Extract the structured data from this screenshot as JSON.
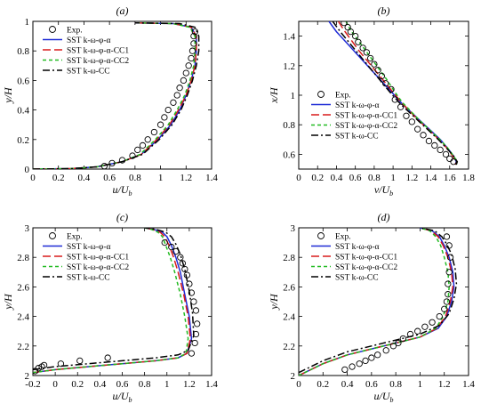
{
  "legend": [
    {
      "key": "exp",
      "label": "Exp.",
      "style": "circle",
      "color": "#000000"
    },
    {
      "key": "a",
      "label": "SST k-ω-φ-α",
      "style": "solid",
      "color": "#1f2bd6"
    },
    {
      "key": "cc1",
      "label": "SST k-ω-φ-α-CC1",
      "style": "dashed",
      "color": "#d81b1b"
    },
    {
      "key": "cc2",
      "label": "SST k-ω-φ-α-CC2",
      "style": "dotted",
      "color": "#22bb22"
    },
    {
      "key": "cc",
      "label": "SST k-ω-CC",
      "style": "dashdot",
      "color": "#000000"
    }
  ],
  "chart_data": [
    {
      "type": "line",
      "panel": "(a)",
      "xlabel": "u/U_b",
      "ylabel": "y/H",
      "xlim": [
        0,
        1.4
      ],
      "ylim": [
        0,
        1
      ],
      "xticks": [
        0,
        0.2,
        0.4,
        0.6,
        0.8,
        1,
        1.2,
        1.4
      ],
      "yticks": [
        0,
        0.2,
        0.4,
        0.6,
        0.8,
        1
      ],
      "xtick_labels": [
        "0",
        "0.2",
        "0.4",
        "0.6",
        "0.8",
        "1",
        "1.2",
        "1.4"
      ],
      "ytick_labels": [
        "0",
        "0.2",
        "0.4",
        "0.6",
        "0.8",
        "1"
      ],
      "series": {
        "exp": {
          "x": [
            0.56,
            0.62,
            0.7,
            0.78,
            0.82,
            0.86,
            0.9,
            0.95,
            1.0,
            1.03,
            1.06,
            1.1,
            1.13,
            1.15,
            1.18,
            1.2,
            1.22,
            1.24,
            1.25,
            1.26,
            1.26,
            1.27
          ],
          "y": [
            0.02,
            0.04,
            0.06,
            0.09,
            0.13,
            0.16,
            0.2,
            0.25,
            0.3,
            0.35,
            0.4,
            0.45,
            0.5,
            0.55,
            0.6,
            0.65,
            0.7,
            0.75,
            0.8,
            0.85,
            0.9,
            0.93
          ]
        },
        "a": {
          "x": [
            0,
            0.3,
            0.5,
            0.7,
            0.85,
            0.98,
            1.08,
            1.15,
            1.2,
            1.24,
            1.27,
            1.28,
            1.28,
            1.24,
            1.1,
            0.8
          ],
          "y": [
            0,
            0.003,
            0.015,
            0.05,
            0.1,
            0.2,
            0.3,
            0.4,
            0.5,
            0.6,
            0.7,
            0.8,
            0.9,
            0.96,
            0.985,
            0.99
          ]
        },
        "cc1": {
          "x": [
            0,
            0.3,
            0.5,
            0.7,
            0.85,
            0.97,
            1.07,
            1.14,
            1.2,
            1.24,
            1.27,
            1.28,
            1.28,
            1.24,
            1.1,
            0.8
          ],
          "y": [
            0,
            0.003,
            0.015,
            0.05,
            0.1,
            0.2,
            0.3,
            0.4,
            0.5,
            0.6,
            0.7,
            0.8,
            0.9,
            0.96,
            0.985,
            0.99
          ]
        },
        "cc2": {
          "x": [
            0,
            0.3,
            0.5,
            0.7,
            0.84,
            0.96,
            1.06,
            1.13,
            1.19,
            1.23,
            1.26,
            1.27,
            1.27,
            1.23,
            1.1,
            0.8
          ],
          "y": [
            0,
            0.003,
            0.015,
            0.05,
            0.1,
            0.2,
            0.3,
            0.4,
            0.5,
            0.6,
            0.7,
            0.8,
            0.9,
            0.96,
            0.985,
            0.99
          ]
        },
        "cc": {
          "x": [
            0,
            0.3,
            0.5,
            0.7,
            0.86,
            0.99,
            1.09,
            1.16,
            1.21,
            1.25,
            1.28,
            1.3,
            1.3,
            1.27,
            1.15,
            0.8
          ],
          "y": [
            0,
            0.003,
            0.015,
            0.05,
            0.1,
            0.2,
            0.3,
            0.4,
            0.5,
            0.6,
            0.7,
            0.8,
            0.9,
            0.96,
            0.985,
            0.99
          ]
        }
      }
    },
    {
      "type": "line",
      "panel": "(b)",
      "xlabel": "v/U_b",
      "ylabel": "x/H",
      "xlim": [
        0,
        1.8
      ],
      "ylim": [
        0.5,
        1.5
      ],
      "xticks": [
        0,
        0.2,
        0.4,
        0.6,
        0.8,
        1,
        1.2,
        1.4,
        1.6,
        1.8
      ],
      "yticks": [
        0.6,
        0.8,
        1,
        1.2,
        1.4
      ],
      "xtick_labels": [
        "0",
        "0.2",
        "0.4",
        "0.6",
        "0.8",
        "1",
        "1.2",
        "1.4",
        "1.6",
        "1.8"
      ],
      "ytick_labels": [
        "0.6",
        "0.8",
        "1",
        "1.2",
        "1.4"
      ],
      "series": {
        "exp": {
          "x": [
            0.48,
            0.52,
            0.55,
            0.6,
            0.63,
            0.68,
            0.72,
            0.76,
            0.8,
            0.84,
            0.88,
            0.92,
            0.98,
            1.02,
            1.08,
            1.14,
            1.2,
            1.26,
            1.32,
            1.38,
            1.44,
            1.5,
            1.56,
            1.6,
            1.64
          ],
          "y": [
            1.49,
            1.46,
            1.43,
            1.4,
            1.36,
            1.32,
            1.29,
            1.25,
            1.21,
            1.17,
            1.13,
            1.08,
            1.04,
            0.97,
            0.92,
            0.86,
            0.82,
            0.77,
            0.73,
            0.69,
            0.66,
            0.63,
            0.6,
            0.57,
            0.55
          ]
        },
        "a": {
          "x": [
            0.32,
            0.4,
            0.5,
            0.6,
            0.7,
            0.8,
            0.9,
            1.0,
            1.1,
            1.2,
            1.3,
            1.4,
            1.5,
            1.58,
            1.64,
            1.67,
            1.66
          ],
          "y": [
            1.5,
            1.43,
            1.36,
            1.29,
            1.22,
            1.15,
            1.08,
            1.01,
            0.94,
            0.88,
            0.82,
            0.76,
            0.7,
            0.64,
            0.59,
            0.55,
            0.53
          ]
        },
        "cc1": {
          "x": [
            0.42,
            0.48,
            0.56,
            0.64,
            0.73,
            0.82,
            0.91,
            1.0,
            1.09,
            1.18,
            1.27,
            1.37,
            1.47,
            1.56,
            1.63,
            1.67,
            1.66
          ],
          "y": [
            1.5,
            1.44,
            1.37,
            1.3,
            1.23,
            1.16,
            1.09,
            1.02,
            0.95,
            0.89,
            0.83,
            0.77,
            0.71,
            0.65,
            0.59,
            0.55,
            0.53
          ]
        },
        "cc2": {
          "x": [
            0.5,
            0.55,
            0.62,
            0.7,
            0.78,
            0.86,
            0.94,
            1.02,
            1.1,
            1.19,
            1.28,
            1.38,
            1.48,
            1.57,
            1.64,
            1.68,
            1.67
          ],
          "y": [
            1.5,
            1.44,
            1.38,
            1.31,
            1.24,
            1.17,
            1.1,
            1.02,
            0.95,
            0.89,
            0.83,
            0.77,
            0.71,
            0.65,
            0.59,
            0.55,
            0.53
          ]
        },
        "cc": {
          "x": [
            0.36,
            0.44,
            0.53,
            0.62,
            0.71,
            0.8,
            0.89,
            0.98,
            1.08,
            1.18,
            1.28,
            1.38,
            1.48,
            1.57,
            1.64,
            1.68,
            1.67
          ],
          "y": [
            1.5,
            1.43,
            1.36,
            1.29,
            1.22,
            1.15,
            1.08,
            1.01,
            0.94,
            0.88,
            0.82,
            0.76,
            0.7,
            0.64,
            0.59,
            0.55,
            0.53
          ]
        }
      }
    },
    {
      "type": "line",
      "panel": "(c)",
      "xlabel": "u/U_b",
      "ylabel": "y/H",
      "xlim": [
        -0.2,
        1.4
      ],
      "ylim": [
        2,
        3
      ],
      "xticks": [
        -0.2,
        0,
        0.2,
        0.4,
        0.6,
        0.8,
        1,
        1.2,
        1.4
      ],
      "yticks": [
        2,
        2.2,
        2.4,
        2.6,
        2.8,
        3
      ],
      "xtick_labels": [
        "-0.2",
        "0",
        "0.2",
        "0.4",
        "0.6",
        "0.8",
        "1",
        "1.2",
        "1.4"
      ],
      "ytick_labels": [
        "2",
        "2.2",
        "2.4",
        "2.6",
        "2.8",
        "3"
      ],
      "series": {
        "exp": {
          "x": [
            -0.18,
            -0.15,
            -0.12,
            -0.1,
            0.05,
            0.22,
            0.47,
            0.98,
            1.04,
            1.08,
            1.12,
            1.14,
            1.16,
            1.18,
            1.2,
            1.22,
            1.24,
            1.26,
            1.27,
            1.26,
            1.25,
            1.22
          ],
          "y": [
            2.03,
            2.05,
            2.06,
            2.07,
            2.08,
            2.1,
            2.12,
            2.9,
            2.87,
            2.84,
            2.8,
            2.76,
            2.72,
            2.68,
            2.62,
            2.56,
            2.5,
            2.44,
            2.35,
            2.28,
            2.22,
            2.15
          ]
        },
        "a": {
          "x": [
            -0.2,
            0,
            0.3,
            0.6,
            0.9,
            1.1,
            1.18,
            1.22,
            1.2,
            1.16,
            1.12,
            1.08,
            1.04,
            1.0,
            0.96,
            0.88,
            0.8
          ],
          "y": [
            2.02,
            2.04,
            2.06,
            2.08,
            2.1,
            2.12,
            2.15,
            2.25,
            2.4,
            2.55,
            2.7,
            2.8,
            2.88,
            2.94,
            2.97,
            2.99,
            3.0
          ]
        },
        "cc1": {
          "x": [
            -0.2,
            0,
            0.3,
            0.6,
            0.9,
            1.1,
            1.18,
            1.21,
            1.19,
            1.15,
            1.1,
            1.06,
            1.02,
            0.98,
            0.94,
            0.87,
            0.8
          ],
          "y": [
            2.02,
            2.04,
            2.06,
            2.08,
            2.1,
            2.12,
            2.15,
            2.25,
            2.4,
            2.55,
            2.7,
            2.8,
            2.88,
            2.94,
            2.97,
            2.99,
            3.0
          ]
        },
        "cc2": {
          "x": [
            -0.2,
            0,
            0.3,
            0.6,
            0.9,
            1.1,
            1.17,
            1.19,
            1.16,
            1.12,
            1.07,
            1.03,
            0.99,
            0.96,
            0.92,
            0.86,
            0.8
          ],
          "y": [
            2.02,
            2.04,
            2.06,
            2.08,
            2.1,
            2.12,
            2.15,
            2.25,
            2.4,
            2.55,
            2.7,
            2.8,
            2.88,
            2.94,
            2.97,
            2.99,
            3.0
          ]
        },
        "cc": {
          "x": [
            -0.2,
            0,
            0.3,
            0.6,
            0.9,
            1.1,
            1.19,
            1.24,
            1.23,
            1.2,
            1.16,
            1.12,
            1.08,
            1.04,
            0.99,
            0.9,
            0.8
          ],
          "y": [
            2.04,
            2.06,
            2.08,
            2.1,
            2.12,
            2.14,
            2.17,
            2.27,
            2.42,
            2.57,
            2.72,
            2.82,
            2.89,
            2.94,
            2.97,
            2.99,
            3.0
          ]
        }
      }
    },
    {
      "type": "line",
      "panel": "(d)",
      "xlabel": "u/U_b",
      "ylabel": "y/H",
      "xlim": [
        0,
        1.4
      ],
      "ylim": [
        2,
        3
      ],
      "xticks": [
        0,
        0.2,
        0.4,
        0.6,
        0.8,
        1,
        1.2,
        1.4
      ],
      "yticks": [
        2,
        2.2,
        2.4,
        2.6,
        2.8,
        3
      ],
      "xtick_labels": [
        "0",
        "0.2",
        "0.4",
        "0.6",
        "0.8",
        "1",
        "1.2",
        "1.4"
      ],
      "ytick_labels": [
        "2",
        "2.2",
        "2.4",
        "2.6",
        "2.8",
        "3"
      ],
      "series": {
        "exp": {
          "x": [
            0.38,
            0.44,
            0.5,
            0.55,
            0.6,
            0.65,
            0.72,
            0.78,
            0.82,
            0.86,
            0.92,
            0.98,
            1.04,
            1.1,
            1.16,
            1.2,
            1.22,
            1.23,
            1.23,
            1.24,
            1.25,
            1.24,
            1.22
          ],
          "y": [
            2.04,
            2.06,
            2.08,
            2.1,
            2.12,
            2.14,
            2.17,
            2.2,
            2.22,
            2.25,
            2.28,
            2.3,
            2.33,
            2.36,
            2.4,
            2.45,
            2.5,
            2.55,
            2.62,
            2.7,
            2.8,
            2.88,
            2.94
          ]
        },
        "a": {
          "x": [
            0,
            0.2,
            0.4,
            0.6,
            0.8,
            1.0,
            1.15,
            1.22,
            1.26,
            1.28,
            1.27,
            1.24,
            1.2,
            1.16,
            1.1,
            1.0
          ],
          "y": [
            2.0,
            2.08,
            2.14,
            2.18,
            2.22,
            2.26,
            2.32,
            2.4,
            2.5,
            2.6,
            2.7,
            2.8,
            2.88,
            2.94,
            2.98,
            3.0
          ]
        },
        "cc1": {
          "x": [
            0,
            0.2,
            0.4,
            0.6,
            0.8,
            1.0,
            1.14,
            1.21,
            1.25,
            1.27,
            1.26,
            1.23,
            1.19,
            1.15,
            1.09,
            1.0
          ],
          "y": [
            2.0,
            2.08,
            2.14,
            2.18,
            2.22,
            2.26,
            2.32,
            2.4,
            2.5,
            2.6,
            2.7,
            2.8,
            2.88,
            2.94,
            2.98,
            3.0
          ]
        },
        "cc2": {
          "x": [
            0,
            0.2,
            0.4,
            0.6,
            0.8,
            1.0,
            1.13,
            1.19,
            1.23,
            1.24,
            1.23,
            1.2,
            1.17,
            1.13,
            1.08,
            1.0
          ],
          "y": [
            2.0,
            2.08,
            2.14,
            2.18,
            2.22,
            2.26,
            2.32,
            2.4,
            2.5,
            2.6,
            2.7,
            2.8,
            2.88,
            2.94,
            2.98,
            3.0
          ]
        },
        "cc": {
          "x": [
            0,
            0.2,
            0.4,
            0.6,
            0.8,
            1.0,
            1.16,
            1.24,
            1.28,
            1.3,
            1.29,
            1.26,
            1.22,
            1.18,
            1.12,
            1.0
          ],
          "y": [
            2.02,
            2.1,
            2.16,
            2.2,
            2.24,
            2.28,
            2.34,
            2.42,
            2.52,
            2.62,
            2.72,
            2.82,
            2.89,
            2.94,
            2.98,
            3.0
          ]
        }
      }
    }
  ]
}
